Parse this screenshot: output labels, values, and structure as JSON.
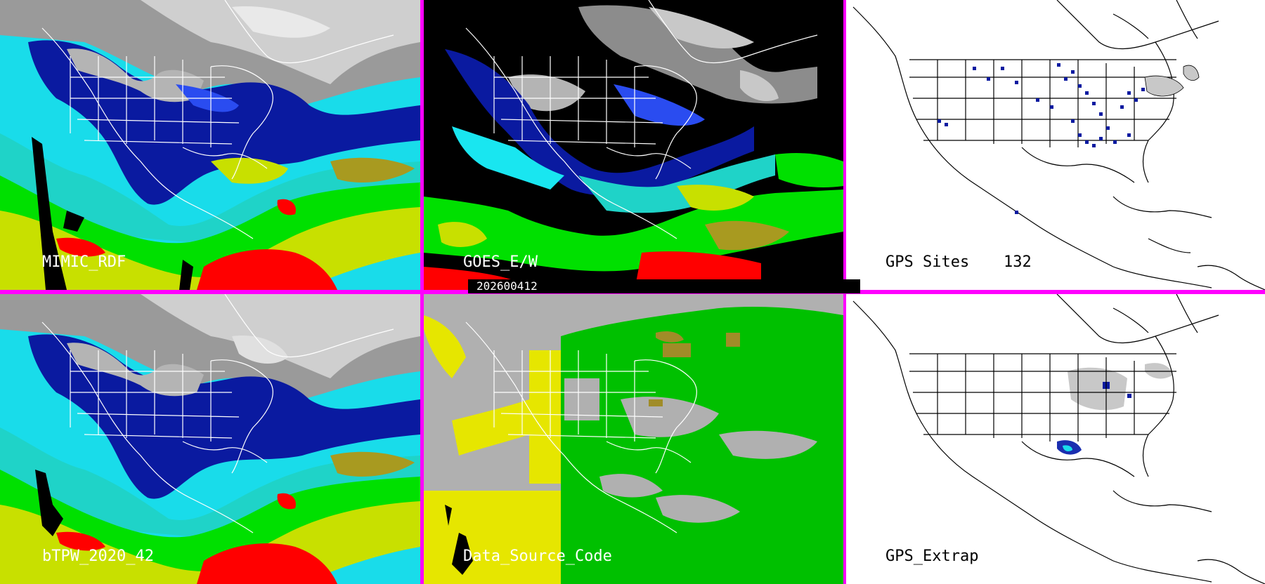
{
  "panels": [
    {
      "label": "MIMIC_RDF"
    },
    {
      "label": "GOES_E/W"
    },
    {
      "label": "GPS Sites",
      "count": "132"
    },
    {
      "label": "bTPW_2020_42"
    },
    {
      "label": "Data_Source_Code"
    },
    {
      "label": "GPS_Extrap"
    }
  ],
  "timestamp": "202600412",
  "colors": {
    "divider": "#ff00ff",
    "tpw_scale": [
      "#8c8c8c",
      "#0a1aa0",
      "#2a4cf0",
      "#19e6f0",
      "#1fd3c8",
      "#00e000",
      "#c8e000",
      "#ff0000"
    ],
    "source_codes": [
      "#b0b0b0",
      "#00c000",
      "#e6e600",
      "#a08c28",
      "#000000"
    ],
    "gps_site": "#0a1aa0"
  }
}
